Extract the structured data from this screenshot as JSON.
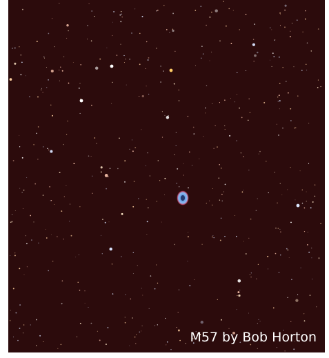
{
  "caption": "M57 by Bob Horton"
}
